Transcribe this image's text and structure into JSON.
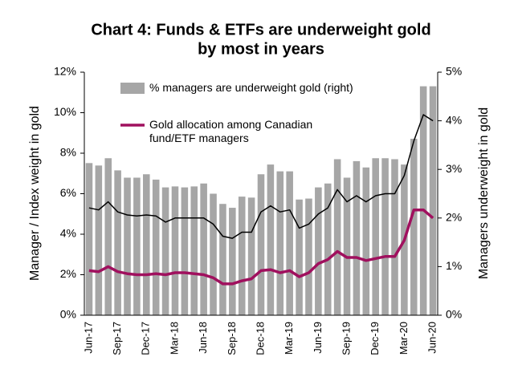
{
  "chart_data": {
    "type": "combo",
    "title": [
      "Chart 4: Funds & ETFs are underweight gold",
      "by most in years"
    ],
    "y_label": "Manager / Index weight in gold",
    "y2_label": "Managers underweight in gold",
    "categories": [
      "Jun-17",
      null,
      null,
      "Sep-17",
      null,
      null,
      "Dec-17",
      null,
      null,
      "Mar-18",
      null,
      null,
      "Jun-18",
      null,
      null,
      "Sep-18",
      null,
      null,
      "Dec-18",
      null,
      null,
      "Mar-19",
      null,
      null,
      "Jun-19",
      null,
      null,
      "Sep-19",
      null,
      null,
      "Dec-19",
      null,
      null,
      "Mar-20",
      null,
      null,
      "Jun-20"
    ],
    "series": [
      {
        "name": "% managers are underweight gold (right)",
        "type": "bar",
        "axis": "y2",
        "color": "#a6a6a6",
        "values": [
          3.13,
          3.08,
          3.23,
          2.98,
          2.83,
          2.83,
          2.9,
          2.79,
          2.63,
          2.65,
          2.63,
          2.65,
          2.71,
          2.5,
          2.29,
          2.21,
          2.44,
          2.42,
          2.9,
          3.1,
          2.96,
          2.96,
          2.38,
          2.4,
          2.63,
          2.71,
          3.21,
          2.83,
          3.17,
          3.04,
          3.23,
          3.23,
          3.21,
          3.1,
          3.63,
          4.71,
          4.71
        ]
      },
      {
        "type": "line",
        "color": "#000000",
        "values": [
          5.3,
          5.2,
          5.6,
          5.1,
          4.95,
          4.9,
          4.95,
          4.9,
          4.6,
          4.8,
          4.8,
          4.8,
          4.8,
          4.5,
          3.9,
          3.8,
          4.1,
          4.1,
          5.1,
          5.4,
          5.1,
          5.2,
          4.3,
          4.5,
          5.0,
          5.3,
          6.2,
          5.6,
          5.9,
          5.6,
          5.9,
          6.0,
          6.0,
          6.9,
          8.6,
          9.9,
          9.6
        ]
      },
      {
        "name": "Gold allocation among Canadian fund/ETF managers",
        "type": "line",
        "color": "#a0105e",
        "values": [
          2.2,
          2.15,
          2.4,
          2.15,
          2.05,
          2.0,
          2.0,
          2.05,
          2.0,
          2.1,
          2.1,
          2.05,
          2.0,
          1.85,
          1.55,
          1.55,
          1.7,
          1.8,
          2.2,
          2.25,
          2.1,
          2.2,
          1.9,
          2.1,
          2.55,
          2.75,
          3.15,
          2.85,
          2.85,
          2.7,
          2.8,
          2.9,
          2.9,
          3.7,
          5.2,
          5.2,
          4.8
        ]
      }
    ],
    "ylim": [
      0,
      12
    ],
    "yticks": [
      {
        "value": 0,
        "label": "0%"
      },
      {
        "value": 2,
        "label": "2%"
      },
      {
        "value": 4,
        "label": "4%"
      },
      {
        "value": 6,
        "label": "6%"
      },
      {
        "value": 8,
        "label": "8%"
      },
      {
        "value": 10,
        "label": "10%"
      },
      {
        "value": 12,
        "label": "12%"
      }
    ],
    "y2lim": [
      0,
      5
    ],
    "y2ticks": [
      {
        "value": 0,
        "label": "0%"
      },
      {
        "value": 1,
        "label": "1%"
      },
      {
        "value": 2,
        "label": "2%"
      },
      {
        "value": 3,
        "label": "3%"
      },
      {
        "value": 4,
        "label": "4%"
      },
      {
        "value": 5,
        "label": "5%"
      }
    ],
    "title_color": "#a3105f"
  }
}
